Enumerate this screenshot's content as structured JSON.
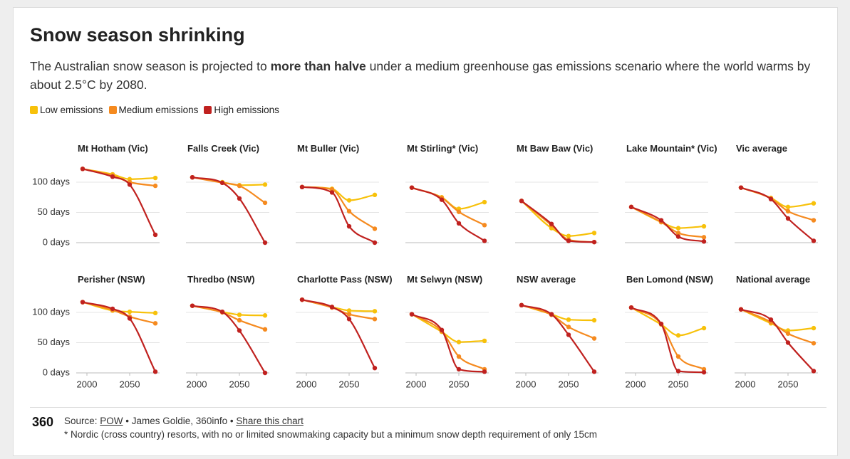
{
  "header": {
    "title": "Snow season shrinking",
    "subtitle": [
      "The Australian snow season is projected to ",
      "more than halve",
      " under a medium greenhouse gas emissions scenario where the world warms by about 2.5°C by 2080."
    ]
  },
  "legend": [
    {
      "name": "Low emissions",
      "color": "#f7c10a"
    },
    {
      "name": "Medium emissions",
      "color": "#f58a1f"
    },
    {
      "name": "High emissions",
      "color": "#c0211f"
    }
  ],
  "chart_data": [
    {
      "type": "line",
      "title": "Mt Hotham (Vic)",
      "x": [
        1995,
        2030,
        2050,
        2080
      ],
      "xlim": [
        1990,
        2085
      ],
      "ylim": [
        0,
        130
      ],
      "yticks": [
        {
          "value": 0,
          "label": "0 days"
        },
        {
          "value": 50,
          "label": "50 days"
        },
        {
          "value": 100,
          "label": "100 days"
        }
      ],
      "series": [
        {
          "values": [
            122,
            113,
            105,
            107
          ]
        },
        {
          "values": [
            122,
            111,
            100,
            94
          ]
        },
        {
          "values": [
            122,
            109,
            96,
            13
          ]
        }
      ]
    },
    {
      "type": "line",
      "title": "Falls Creek (Vic)",
      "x": [
        1995,
        2030,
        2050,
        2080
      ],
      "xlim": [
        1990,
        2085
      ],
      "ylim": [
        0,
        130
      ],
      "yticks": [
        0,
        50,
        100
      ],
      "series": [
        {
          "values": [
            108,
            100,
            95,
            96
          ]
        },
        {
          "values": [
            108,
            99,
            94,
            66
          ]
        },
        {
          "values": [
            108,
            99,
            73,
            0
          ]
        }
      ]
    },
    {
      "type": "line",
      "title": "Mt Buller (Vic)",
      "x": [
        1995,
        2030,
        2050,
        2080
      ],
      "xlim": [
        1990,
        2085
      ],
      "ylim": [
        0,
        130
      ],
      "yticks": [
        0,
        50,
        100
      ],
      "series": [
        {
          "values": [
            92,
            89,
            70,
            79
          ]
        },
        {
          "values": [
            92,
            88,
            52,
            23
          ]
        },
        {
          "values": [
            92,
            83,
            27,
            0
          ]
        }
      ]
    },
    {
      "type": "line",
      "title": "Mt Stirling* (Vic)",
      "x": [
        1995,
        2030,
        2050,
        2080
      ],
      "xlim": [
        1990,
        2085
      ],
      "ylim": [
        0,
        130
      ],
      "yticks": [
        0,
        50,
        100
      ],
      "series": [
        {
          "values": [
            91,
            75,
            56,
            67
          ]
        },
        {
          "values": [
            91,
            74,
            51,
            29
          ]
        },
        {
          "values": [
            91,
            71,
            32,
            3
          ]
        }
      ]
    },
    {
      "type": "line",
      "title": "Mt Baw Baw (Vic)",
      "x": [
        1995,
        2030,
        2050,
        2080
      ],
      "xlim": [
        1990,
        2085
      ],
      "ylim": [
        0,
        130
      ],
      "yticks": [
        0,
        50,
        100
      ],
      "series": [
        {
          "values": [
            69,
            24,
            11,
            16
          ]
        },
        {
          "values": [
            69,
            29,
            5,
            1
          ]
        },
        {
          "values": [
            69,
            31,
            3,
            1
          ]
        }
      ]
    },
    {
      "type": "line",
      "title": "Lake Mountain* (Vic)",
      "x": [
        1995,
        2030,
        2050,
        2080
      ],
      "xlim": [
        1990,
        2085
      ],
      "ylim": [
        0,
        130
      ],
      "yticks": [
        0,
        50,
        100
      ],
      "series": [
        {
          "values": [
            59,
            34,
            24,
            27
          ]
        },
        {
          "values": [
            59,
            34,
            16,
            9
          ]
        },
        {
          "values": [
            59,
            37,
            10,
            2
          ]
        }
      ]
    },
    {
      "type": "line",
      "title": "Vic average",
      "x": [
        1995,
        2030,
        2050,
        2080
      ],
      "xlim": [
        1990,
        2085
      ],
      "ylim": [
        0,
        130
      ],
      "yticks": [
        0,
        50,
        100
      ],
      "series": [
        {
          "values": [
            91,
            74,
            59,
            65
          ]
        },
        {
          "values": [
            91,
            73,
            52,
            37
          ]
        },
        {
          "values": [
            91,
            72,
            40,
            3
          ]
        }
      ]
    },
    {
      "type": "line",
      "title": "Perisher (NSW)",
      "x": [
        1995,
        2030,
        2050,
        2080
      ],
      "xlim": [
        1990,
        2085
      ],
      "ylim": [
        0,
        130
      ],
      "yticks": [
        {
          "value": 0,
          "label": "0 days"
        },
        {
          "value": 50,
          "label": "50 days"
        },
        {
          "value": 100,
          "label": "100 days"
        }
      ],
      "xticks": [
        2000,
        2050
      ],
      "series": [
        {
          "values": [
            117,
            103,
            101,
            99
          ]
        },
        {
          "values": [
            117,
            104,
            93,
            82
          ]
        },
        {
          "values": [
            117,
            106,
            90,
            2
          ]
        }
      ]
    },
    {
      "type": "line",
      "title": "Thredbo (NSW)",
      "x": [
        1995,
        2030,
        2050,
        2080
      ],
      "xlim": [
        1990,
        2085
      ],
      "ylim": [
        0,
        130
      ],
      "yticks": [
        0,
        50,
        100
      ],
      "xticks": [
        2000,
        2050
      ],
      "series": [
        {
          "values": [
            111,
            101,
            96,
            95
          ]
        },
        {
          "values": [
            111,
            100,
            87,
            72
          ]
        },
        {
          "values": [
            111,
            101,
            70,
            0
          ]
        }
      ]
    },
    {
      "type": "line",
      "title": "Charlotte Pass (NSW)",
      "x": [
        1995,
        2030,
        2050,
        2080
      ],
      "xlim": [
        1990,
        2085
      ],
      "ylim": [
        0,
        130
      ],
      "yticks": [
        0,
        50,
        100
      ],
      "xticks": [
        2000,
        2050
      ],
      "series": [
        {
          "values": [
            121,
            109,
            103,
            102
          ]
        },
        {
          "values": [
            121,
            108,
            97,
            89
          ]
        },
        {
          "values": [
            121,
            109,
            89,
            8
          ]
        }
      ]
    },
    {
      "type": "line",
      "title": "Mt Selwyn (NSW)",
      "x": [
        1995,
        2030,
        2050,
        2080
      ],
      "xlim": [
        1990,
        2085
      ],
      "ylim": [
        0,
        130
      ],
      "yticks": [
        0,
        50,
        100
      ],
      "xticks": [
        2000,
        2050
      ],
      "series": [
        {
          "values": [
            97,
            68,
            51,
            53
          ]
        },
        {
          "values": [
            97,
            69,
            27,
            6
          ]
        },
        {
          "values": [
            97,
            71,
            6,
            2
          ]
        }
      ]
    },
    {
      "type": "line",
      "title": "NSW average",
      "x": [
        1995,
        2030,
        2050,
        2080
      ],
      "xlim": [
        1990,
        2085
      ],
      "ylim": [
        0,
        130
      ],
      "yticks": [
        0,
        50,
        100
      ],
      "xticks": [
        2000,
        2050
      ],
      "series": [
        {
          "values": [
            112,
            97,
            88,
            87
          ]
        },
        {
          "values": [
            112,
            96,
            76,
            57
          ]
        },
        {
          "values": [
            112,
            97,
            63,
            2
          ]
        }
      ]
    },
    {
      "type": "line",
      "title": "Ben Lomond (NSW)",
      "x": [
        1995,
        2030,
        2050,
        2080
      ],
      "xlim": [
        1990,
        2085
      ],
      "ylim": [
        0,
        130
      ],
      "yticks": [
        0,
        50,
        100
      ],
      "xticks": [
        2000,
        2050
      ],
      "series": [
        {
          "values": [
            108,
            80,
            62,
            74
          ]
        },
        {
          "values": [
            108,
            81,
            27,
            6
          ]
        },
        {
          "values": [
            108,
            81,
            3,
            1
          ]
        }
      ]
    },
    {
      "type": "line",
      "title": "National average",
      "x": [
        1995,
        2030,
        2050,
        2080
      ],
      "xlim": [
        1990,
        2085
      ],
      "ylim": [
        0,
        130
      ],
      "yticks": [
        0,
        50,
        100
      ],
      "xticks": [
        2000,
        2050
      ],
      "series": [
        {
          "values": [
            105,
            82,
            70,
            74
          ]
        },
        {
          "values": [
            105,
            84,
            65,
            49
          ]
        },
        {
          "values": [
            105,
            88,
            50,
            3
          ]
        }
      ]
    }
  ],
  "footer": {
    "logo": "360",
    "source": [
      "Source: ",
      "POW",
      " • James Goldie, 360info • ",
      "Share this chart"
    ],
    "note": "* Nordic (cross country) resorts, with no or limited snowmaking capacity but a minimum snow depth requirement of only 15cm"
  }
}
